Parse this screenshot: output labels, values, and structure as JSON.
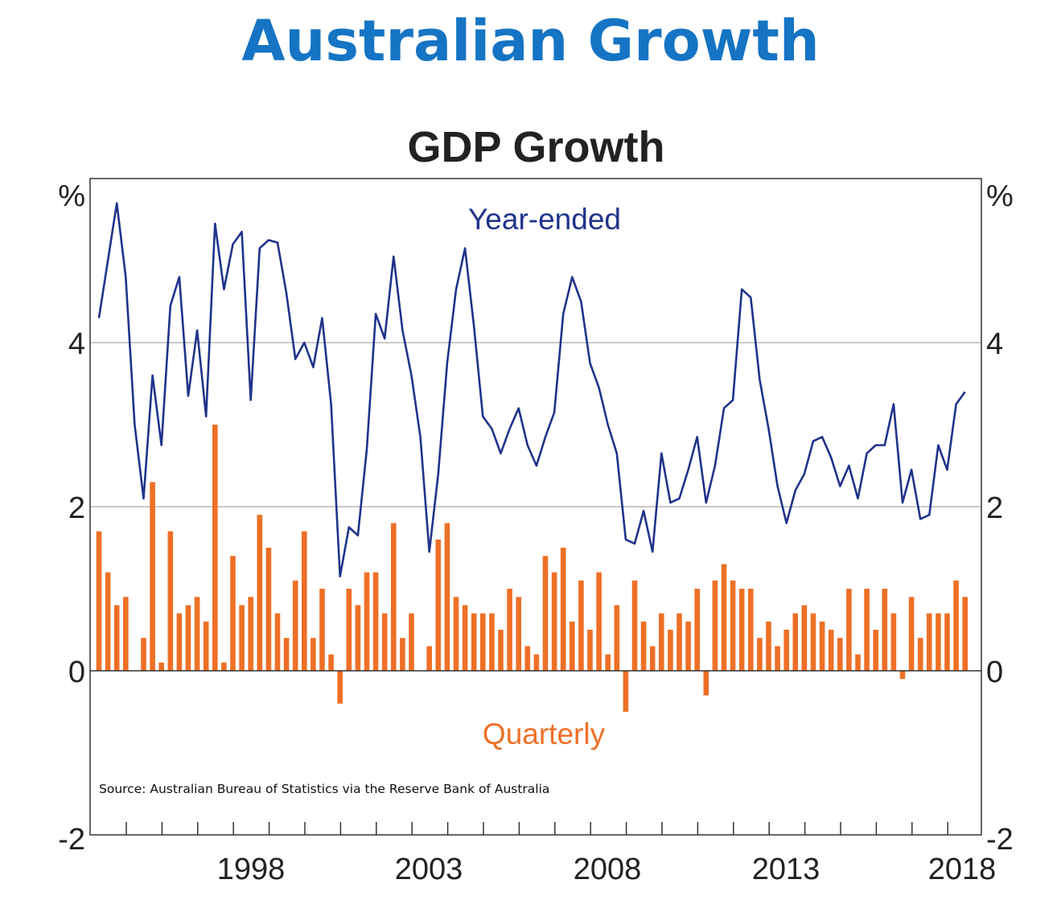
{
  "page_title": "Australian Growth",
  "chart_data": {
    "type": "bar+line",
    "title": "GDP Growth",
    "y_unit_left": "%",
    "y_unit_right": "%",
    "ylim": [
      -2,
      6
    ],
    "yticks": [
      "-2",
      "0",
      "2",
      "4"
    ],
    "grid": true,
    "xlabels": [
      "1998",
      "2003",
      "2008",
      "2013",
      "2018"
    ],
    "x_range": [
      "1994-Q1",
      "2018-Q4"
    ],
    "series": [
      {
        "name": "Year-ended",
        "type": "line",
        "color": "#20338a",
        "values": [
          4.3,
          5.0,
          5.7,
          4.8,
          3.0,
          2.1,
          3.6,
          2.75,
          4.45,
          4.8,
          3.35,
          4.15,
          3.1,
          5.45,
          4.65,
          5.2,
          5.35,
          3.3,
          5.15,
          5.25,
          5.22,
          4.6,
          3.8,
          4.0,
          3.7,
          4.3,
          3.25,
          1.15,
          1.75,
          1.65,
          2.7,
          4.35,
          4.05,
          5.05,
          4.15,
          3.6,
          2.85,
          1.45,
          2.4,
          3.75,
          4.65,
          5.15,
          4.2,
          3.1,
          2.95,
          2.65,
          2.95,
          3.2,
          2.75,
          2.5,
          2.85,
          3.15,
          4.35,
          4.8,
          4.5,
          3.75,
          3.45,
          3.0,
          2.65,
          1.6,
          1.55,
          1.95,
          1.45,
          2.65,
          2.05,
          2.1,
          2.45,
          2.85,
          2.05,
          2.5,
          3.2,
          3.3,
          4.65,
          4.55,
          3.55,
          2.95,
          2.25,
          1.8,
          2.2,
          2.4,
          2.8,
          2.85,
          2.6,
          2.25,
          2.5,
          2.1,
          2.65,
          2.75,
          2.75,
          3.25,
          2.05,
          2.45,
          1.85,
          1.9,
          2.75,
          2.45,
          3.25,
          3.4
        ]
      },
      {
        "name": "Quarterly",
        "type": "bar",
        "color": "#ee7026",
        "values": [
          1.7,
          1.2,
          0.8,
          0.9,
          0.0,
          0.4,
          2.3,
          0.1,
          1.7,
          0.7,
          0.8,
          0.9,
          0.6,
          3.0,
          0.1,
          1.4,
          0.8,
          0.9,
          1.9,
          1.5,
          0.7,
          0.4,
          1.1,
          1.7,
          0.4,
          1.0,
          0.2,
          -0.4,
          1.0,
          0.8,
          1.2,
          1.2,
          0.7,
          1.8,
          0.4,
          0.7,
          0.0,
          0.3,
          1.6,
          1.8,
          0.9,
          0.8,
          0.7,
          0.7,
          0.7,
          0.5,
          1.0,
          0.9,
          0.3,
          0.2,
          1.4,
          1.2,
          1.5,
          0.6,
          1.1,
          0.5,
          1.2,
          0.2,
          0.8,
          -0.5,
          1.1,
          0.6,
          0.3,
          0.7,
          0.5,
          0.7,
          0.6,
          1.0,
          -0.3,
          1.1,
          1.3,
          1.1,
          1.0,
          1.0,
          0.4,
          0.6,
          0.3,
          0.5,
          0.7,
          0.8,
          0.7,
          0.6,
          0.5,
          0.4,
          1.0,
          0.2,
          1.0,
          0.5,
          1.0,
          0.7,
          -0.1,
          0.9,
          0.4,
          0.7,
          0.7,
          0.7,
          1.1,
          0.9
        ]
      }
    ],
    "source": "Source: Australian Bureau of Statistics via the Reserve Bank of Australia"
  }
}
